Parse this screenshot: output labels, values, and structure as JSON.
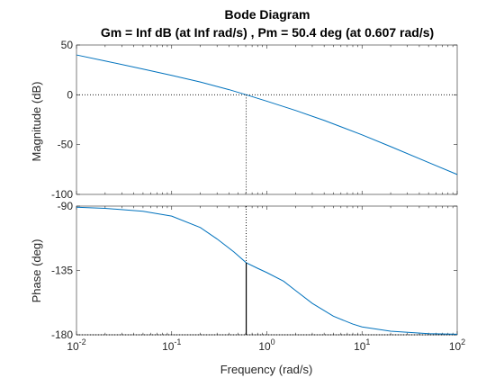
{
  "chart_data": {
    "type": "line",
    "title": "Bode Diagram",
    "subtitle": "Gm = Inf dB (at Inf rad/s) ,  Pm = 50.4 deg (at 0.607 rad/s)",
    "xlabel": "Frequency  (rad/s)",
    "x_scale": "log",
    "xlim": [
      0.01,
      100
    ],
    "x_ticks": [
      {
        "base": "10",
        "exp": "-2"
      },
      {
        "base": "10",
        "exp": "-1"
      },
      {
        "base": "10",
        "exp": "0"
      },
      {
        "base": "10",
        "exp": "1"
      },
      {
        "base": "10",
        "exp": "2"
      }
    ],
    "crossover_frequency": 0.607,
    "grid": false,
    "colors": {
      "line": "#0072BD",
      "marker": "#000000",
      "axes": "#262626"
    },
    "panels": [
      {
        "id": "magnitude",
        "ylabel": "Magnitude (dB)",
        "ylim": [
          -100,
          50
        ],
        "y_ticks": [
          "50",
          "0",
          "-50",
          "-100"
        ],
        "reference_value": 0,
        "margin_marker": "dotted",
        "series": [
          {
            "x": [
              0.01,
              0.02,
              0.05,
              0.1,
              0.2,
              0.4,
              0.607,
              1,
              2,
              4,
              10,
              20,
              50,
              100
            ],
            "y": [
              40,
              34,
              25.8,
              19.5,
              12.8,
              5.2,
              0,
              -6.4,
              -15.7,
              -25.7,
              -40.2,
              -52,
              -68,
              -80
            ]
          }
        ]
      },
      {
        "id": "phase",
        "ylabel": "Phase (deg)",
        "ylim": [
          -180,
          -90
        ],
        "y_ticks": [
          "-90",
          "-135",
          "-180"
        ],
        "reference_value": -180,
        "margin_marker": "solid",
        "series": [
          {
            "x": [
              0.01,
              0.02,
              0.05,
              0.1,
              0.2,
              0.3,
              0.45,
              0.607,
              0.8,
              1,
              1.5,
              2,
              3,
              5,
              8,
              10,
              20,
              50,
              100
            ],
            "y": [
              -90.8,
              -91.6,
              -93.6,
              -97,
              -105,
              -113,
              -122,
              -129.6,
              -133.5,
              -136.5,
              -142.5,
              -149,
              -158,
              -167,
              -172.5,
              -174.5,
              -177.5,
              -179.2,
              -179.6
            ]
          }
        ]
      }
    ]
  }
}
